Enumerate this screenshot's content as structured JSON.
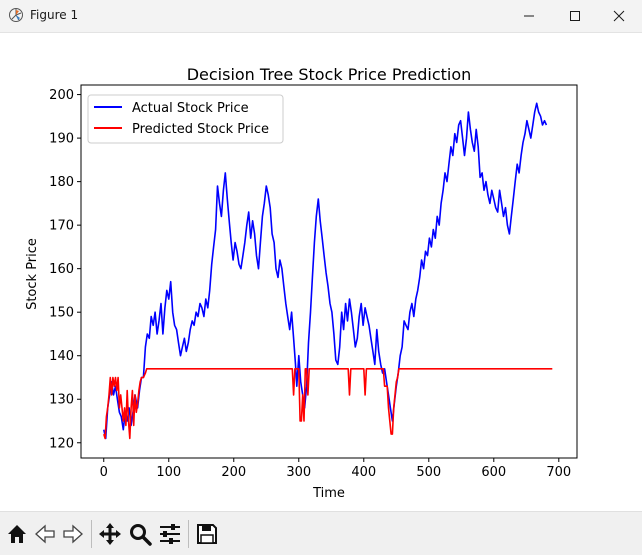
{
  "window": {
    "title": "Figure 1",
    "icons": {
      "app": "matplotlib-figure-icon",
      "minimize": "minimize-icon",
      "maximize": "maximize-icon",
      "close": "close-icon"
    }
  },
  "toolbar": {
    "buttons": [
      "home-icon",
      "back-arrow-icon",
      "forward-arrow-icon",
      "pan-move-icon",
      "zoom-magnifier-icon",
      "configure-subplots-icon",
      "save-floppy-icon"
    ]
  },
  "chart_data": {
    "type": "line",
    "title": "Decision Tree Stock Price Prediction",
    "xlabel": "Time",
    "ylabel": "Stock Price",
    "xlim": [
      -35,
      728
    ],
    "ylim": [
      116.5,
      202.2
    ],
    "xticks": [
      0,
      100,
      200,
      300,
      400,
      500,
      600,
      700
    ],
    "yticks": [
      120,
      130,
      140,
      150,
      160,
      170,
      180,
      190,
      200
    ],
    "grid": false,
    "legend_placement": "upper-left",
    "colors": {
      "actual": "#0000ff",
      "predicted": "#ff0000"
    },
    "series": [
      {
        "name": "Actual Stock Price",
        "color": "#0000ff",
        "points": [
          [
            0,
            123
          ],
          [
            3,
            121
          ],
          [
            6,
            128
          ],
          [
            9,
            131
          ],
          [
            12,
            134
          ],
          [
            15,
            131
          ],
          [
            18,
            133
          ],
          [
            21,
            130
          ],
          [
            24,
            127
          ],
          [
            27,
            126
          ],
          [
            30,
            123
          ],
          [
            33,
            127
          ],
          [
            36,
            125
          ],
          [
            39,
            128
          ],
          [
            42,
            124
          ],
          [
            45,
            127
          ],
          [
            48,
            131
          ],
          [
            52,
            128
          ],
          [
            55,
            132
          ],
          [
            58,
            135
          ],
          [
            61,
            135
          ],
          [
            64,
            142
          ],
          [
            67,
            145
          ],
          [
            70,
            144
          ],
          [
            73,
            149
          ],
          [
            76,
            147
          ],
          [
            79,
            150
          ],
          [
            82,
            145
          ],
          [
            85,
            148
          ],
          [
            88,
            152
          ],
          [
            91,
            145
          ],
          [
            94,
            151
          ],
          [
            97,
            155
          ],
          [
            100,
            153
          ],
          [
            103,
            157
          ],
          [
            106,
            150
          ],
          [
            109,
            147
          ],
          [
            112,
            146
          ],
          [
            115,
            143
          ],
          [
            118,
            140
          ],
          [
            121,
            142
          ],
          [
            124,
            144
          ],
          [
            127,
            141
          ],
          [
            130,
            143
          ],
          [
            133,
            146
          ],
          [
            136,
            148
          ],
          [
            139,
            147
          ],
          [
            142,
            150
          ],
          [
            145,
            149
          ],
          [
            148,
            152
          ],
          [
            151,
            151
          ],
          [
            154,
            149
          ],
          [
            157,
            153
          ],
          [
            160,
            151
          ],
          [
            163,
            155
          ],
          [
            166,
            161
          ],
          [
            169,
            165
          ],
          [
            172,
            169
          ],
          [
            175,
            179
          ],
          [
            178,
            175
          ],
          [
            181,
            172
          ],
          [
            184,
            178
          ],
          [
            187,
            182
          ],
          [
            190,
            176
          ],
          [
            193,
            171
          ],
          [
            196,
            166
          ],
          [
            199,
            162
          ],
          [
            202,
            166
          ],
          [
            205,
            164
          ],
          [
            208,
            161
          ],
          [
            211,
            160
          ],
          [
            214,
            163
          ],
          [
            217,
            166
          ],
          [
            220,
            170
          ],
          [
            223,
            173
          ],
          [
            226,
            167
          ],
          [
            229,
            171
          ],
          [
            232,
            168
          ],
          [
            235,
            163
          ],
          [
            238,
            160
          ],
          [
            241,
            166
          ],
          [
            244,
            172
          ],
          [
            247,
            175
          ],
          [
            250,
            179
          ],
          [
            253,
            177
          ],
          [
            256,
            174
          ],
          [
            259,
            168
          ],
          [
            262,
            166
          ],
          [
            265,
            160
          ],
          [
            268,
            158
          ],
          [
            271,
            162
          ],
          [
            274,
            160
          ],
          [
            277,
            156
          ],
          [
            280,
            152
          ],
          [
            283,
            149
          ],
          [
            286,
            146
          ],
          [
            289,
            150
          ],
          [
            292,
            144
          ],
          [
            295,
            138
          ],
          [
            297,
            133
          ],
          [
            300,
            140
          ],
          [
            303,
            134
          ],
          [
            306,
            131
          ],
          [
            309,
            128
          ],
          [
            312,
            133
          ],
          [
            315,
            143
          ],
          [
            318,
            150
          ],
          [
            321,
            158
          ],
          [
            324,
            166
          ],
          [
            327,
            172
          ],
          [
            330,
            176
          ],
          [
            333,
            171
          ],
          [
            336,
            167
          ],
          [
            339,
            163
          ],
          [
            342,
            159
          ],
          [
            345,
            156
          ],
          [
            348,
            152
          ],
          [
            351,
            150
          ],
          [
            354,
            145
          ],
          [
            357,
            139
          ],
          [
            360,
            138
          ],
          [
            363,
            142
          ],
          [
            366,
            150
          ],
          [
            369,
            146
          ],
          [
            372,
            152
          ],
          [
            375,
            148
          ],
          [
            378,
            153
          ],
          [
            381,
            150
          ],
          [
            384,
            146
          ],
          [
            387,
            142
          ],
          [
            390,
            144
          ],
          [
            393,
            149
          ],
          [
            396,
            152
          ],
          [
            399,
            147
          ],
          [
            402,
            151
          ],
          [
            405,
            149
          ],
          [
            408,
            147
          ],
          [
            411,
            144
          ],
          [
            414,
            141
          ],
          [
            417,
            138
          ],
          [
            420,
            146
          ],
          [
            423,
            141
          ],
          [
            426,
            138
          ],
          [
            429,
            136
          ],
          [
            432,
            137
          ],
          [
            435,
            134
          ],
          [
            438,
            131
          ],
          [
            441,
            128
          ],
          [
            444,
            125
          ],
          [
            447,
            129
          ],
          [
            450,
            133
          ],
          [
            453,
            136
          ],
          [
            456,
            140
          ],
          [
            459,
            142
          ],
          [
            462,
            148
          ],
          [
            465,
            147
          ],
          [
            468,
            146
          ],
          [
            471,
            150
          ],
          [
            474,
            152
          ],
          [
            477,
            149
          ],
          [
            480,
            153
          ],
          [
            483,
            155
          ],
          [
            486,
            158
          ],
          [
            489,
            162
          ],
          [
            492,
            160
          ],
          [
            495,
            164
          ],
          [
            498,
            163
          ],
          [
            501,
            167
          ],
          [
            504,
            165
          ],
          [
            507,
            169
          ],
          [
            510,
            167
          ],
          [
            513,
            172
          ],
          [
            516,
            170
          ],
          [
            519,
            175
          ],
          [
            522,
            178
          ],
          [
            525,
            182
          ],
          [
            528,
            180
          ],
          [
            531,
            184
          ],
          [
            534,
            188
          ],
          [
            537,
            186
          ],
          [
            540,
            191
          ],
          [
            543,
            189
          ],
          [
            546,
            193
          ],
          [
            549,
            194
          ],
          [
            552,
            190
          ],
          [
            555,
            186
          ],
          [
            558,
            190
          ],
          [
            561,
            196
          ],
          [
            564,
            192
          ],
          [
            567,
            189
          ],
          [
            570,
            187
          ],
          [
            573,
            192
          ],
          [
            576,
            188
          ],
          [
            579,
            181
          ],
          [
            582,
            182
          ],
          [
            585,
            178
          ],
          [
            588,
            180
          ],
          [
            591,
            177
          ],
          [
            594,
            175
          ],
          [
            597,
            178
          ],
          [
            600,
            176
          ],
          [
            603,
            174
          ],
          [
            606,
            173
          ],
          [
            609,
            178
          ],
          [
            612,
            175
          ],
          [
            615,
            172
          ],
          [
            618,
            174
          ],
          [
            621,
            170
          ],
          [
            624,
            168
          ],
          [
            627,
            172
          ],
          [
            630,
            176
          ],
          [
            633,
            180
          ],
          [
            636,
            184
          ],
          [
            639,
            182
          ],
          [
            642,
            186
          ],
          [
            645,
            189
          ],
          [
            648,
            191
          ],
          [
            651,
            194
          ],
          [
            654,
            192
          ],
          [
            657,
            190
          ],
          [
            660,
            193
          ],
          [
            663,
            196
          ],
          [
            666,
            198
          ],
          [
            669,
            196
          ],
          [
            672,
            195
          ],
          [
            675,
            193
          ],
          [
            678,
            194
          ],
          [
            681,
            193
          ]
        ]
      },
      {
        "name": "Predicted Stock Price",
        "color": "#ff0000",
        "points": [
          [
            0,
            122
          ],
          [
            2,
            121
          ],
          [
            4,
            126
          ],
          [
            6,
            128
          ],
          [
            8,
            131
          ],
          [
            10,
            135
          ],
          [
            12,
            131
          ],
          [
            14,
            135
          ],
          [
            16,
            133
          ],
          [
            18,
            135
          ],
          [
            20,
            132
          ],
          [
            22,
            135
          ],
          [
            24,
            128
          ],
          [
            26,
            131
          ],
          [
            28,
            128
          ],
          [
            30,
            125
          ],
          [
            32,
            128
          ],
          [
            34,
            124
          ],
          [
            36,
            132
          ],
          [
            38,
            125
          ],
          [
            40,
            121
          ],
          [
            42,
            128
          ],
          [
            44,
            132
          ],
          [
            46,
            124
          ],
          [
            48,
            131
          ],
          [
            50,
            127
          ],
          [
            52,
            129
          ],
          [
            54,
            132
          ],
          [
            56,
            134
          ],
          [
            58,
            135
          ],
          [
            61,
            135
          ],
          [
            64,
            136
          ],
          [
            66,
            137
          ],
          [
            290,
            137
          ],
          [
            292,
            131
          ],
          [
            294,
            137
          ],
          [
            300,
            137
          ],
          [
            302,
            125
          ],
          [
            304,
            125
          ],
          [
            306,
            131
          ],
          [
            308,
            125
          ],
          [
            310,
            137
          ],
          [
            312,
            137
          ],
          [
            314,
            131
          ],
          [
            316,
            137
          ],
          [
            376,
            137
          ],
          [
            378,
            131
          ],
          [
            380,
            137
          ],
          [
            400,
            137
          ],
          [
            402,
            131
          ],
          [
            404,
            137
          ],
          [
            430,
            137
          ],
          [
            432,
            133
          ],
          [
            436,
            133
          ],
          [
            438,
            128
          ],
          [
            440,
            125
          ],
          [
            442,
            122
          ],
          [
            444,
            122
          ],
          [
            446,
            128
          ],
          [
            448,
            131
          ],
          [
            450,
            134
          ],
          [
            452,
            135
          ],
          [
            454,
            137
          ],
          [
            690,
            137
          ]
        ]
      }
    ]
  }
}
